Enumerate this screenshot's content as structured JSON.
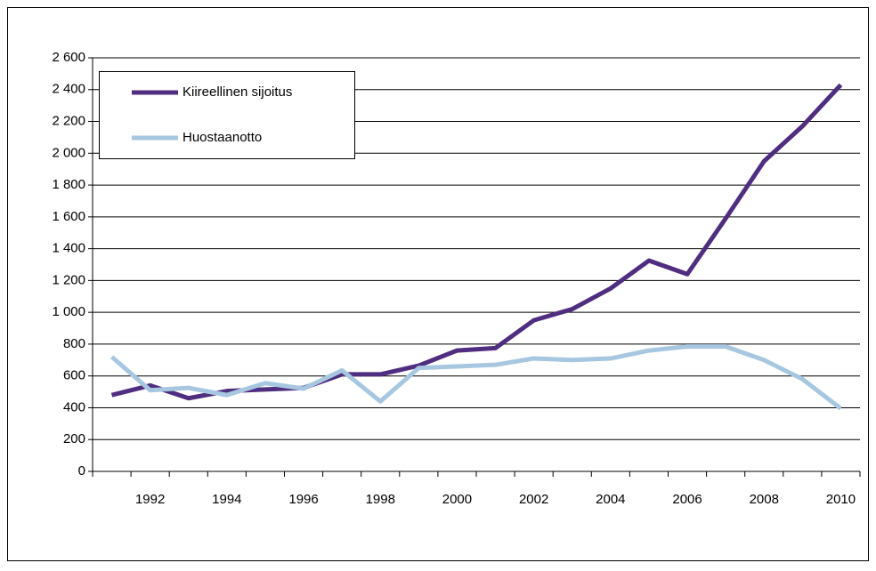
{
  "chart_data": {
    "type": "line",
    "categories": [
      null,
      "1992",
      null,
      "1994",
      null,
      "1996",
      null,
      "1998",
      null,
      "2000",
      null,
      "2002",
      null,
      "2004",
      null,
      "2006",
      null,
      "2008",
      null,
      "2010"
    ],
    "series": [
      {
        "name": "Kiireellinen sijoitus",
        "color": "#4f2d7f",
        "values": [
          480,
          540,
          460,
          505,
          515,
          525,
          610,
          610,
          665,
          760,
          775,
          950,
          1020,
          1150,
          1325,
          1240,
          1590,
          1950,
          2170,
          2430
        ]
      },
      {
        "name": "Huostaanotto",
        "color": "#a7c7e0",
        "values": [
          720,
          510,
          525,
          480,
          555,
          520,
          635,
          440,
          650,
          660,
          670,
          710,
          700,
          710,
          760,
          785,
          785,
          700,
          580,
          395
        ]
      }
    ],
    "ylim": [
      0,
      2600
    ],
    "yticks": [
      0,
      200,
      400,
      600,
      800,
      {
        "value": 1000,
        "label": "1 000"
      },
      {
        "value": 1200,
        "label": "1 200"
      },
      {
        "value": 1400,
        "label": "1 400"
      },
      {
        "value": 1600,
        "label": "1 600"
      },
      {
        "value": 1800,
        "label": "1 800"
      },
      {
        "value": 2000,
        "label": "2 000"
      },
      {
        "value": 2200,
        "label": "2 200"
      },
      {
        "value": 2400,
        "label": "2 400"
      },
      {
        "value": 2600,
        "label": "2 600"
      }
    ],
    "grid": true,
    "legend": "upper left"
  }
}
